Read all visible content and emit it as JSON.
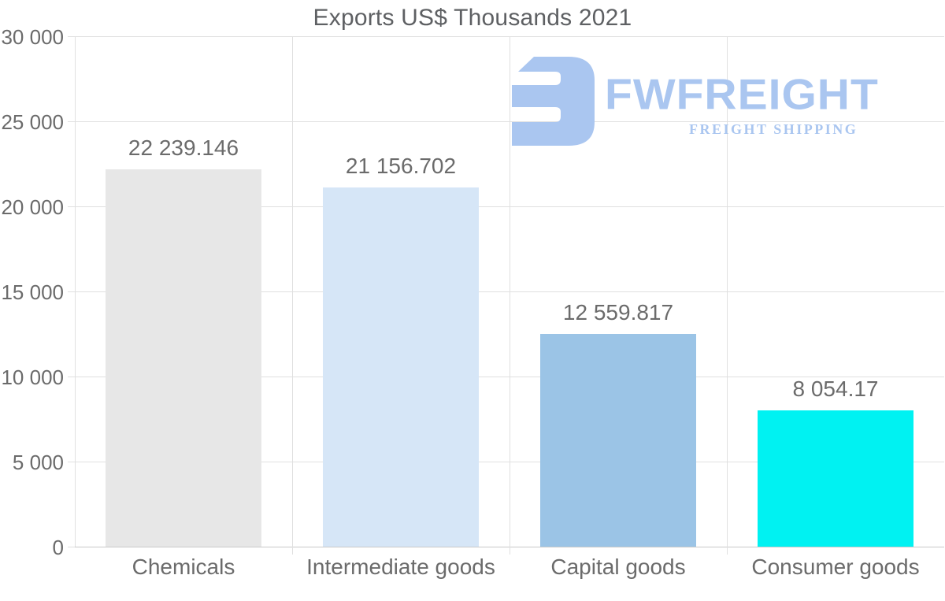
{
  "title": "Exports US$ Thousands 2021",
  "logo": {
    "name": "FWFREIGHT",
    "subtitle": "FREIGHT SHIPPING",
    "color": "#aac6f0"
  },
  "chart_data": {
    "type": "bar",
    "title": "Exports US$ Thousands 2021",
    "categories": [
      "Chemicals",
      "Intermediate goods",
      "Capital goods",
      "Consumer goods"
    ],
    "values": [
      22239.146,
      21156.702,
      12559.817,
      8054.17
    ],
    "value_labels": [
      "22 239.146",
      "21 156.702",
      "12 559.817",
      "8 054.17"
    ],
    "bar_colors": [
      "#e7e7e7",
      "#d6e6f7",
      "#9bc4e6",
      "#00f2f2"
    ],
    "xlabel": "",
    "ylabel": "",
    "ylim": [
      0,
      30000
    ],
    "ytick_interval": 5000,
    "yticks": [
      {
        "value": 0,
        "label": "0"
      },
      {
        "value": 5000,
        "label": "5 000"
      },
      {
        "value": 10000,
        "label": "10 000"
      },
      {
        "value": 15000,
        "label": "15 000"
      },
      {
        "value": 20000,
        "label": "20 000"
      },
      {
        "value": 25000,
        "label": "25 000"
      },
      {
        "value": 30000,
        "label": "30 000"
      }
    ],
    "grid": true,
    "legend": false
  },
  "colors": {
    "text": "#6b6b6b",
    "title": "#5e6063",
    "grid": "#e0e0e0",
    "axis": "#c9c9c9",
    "background": "#ffffff"
  }
}
